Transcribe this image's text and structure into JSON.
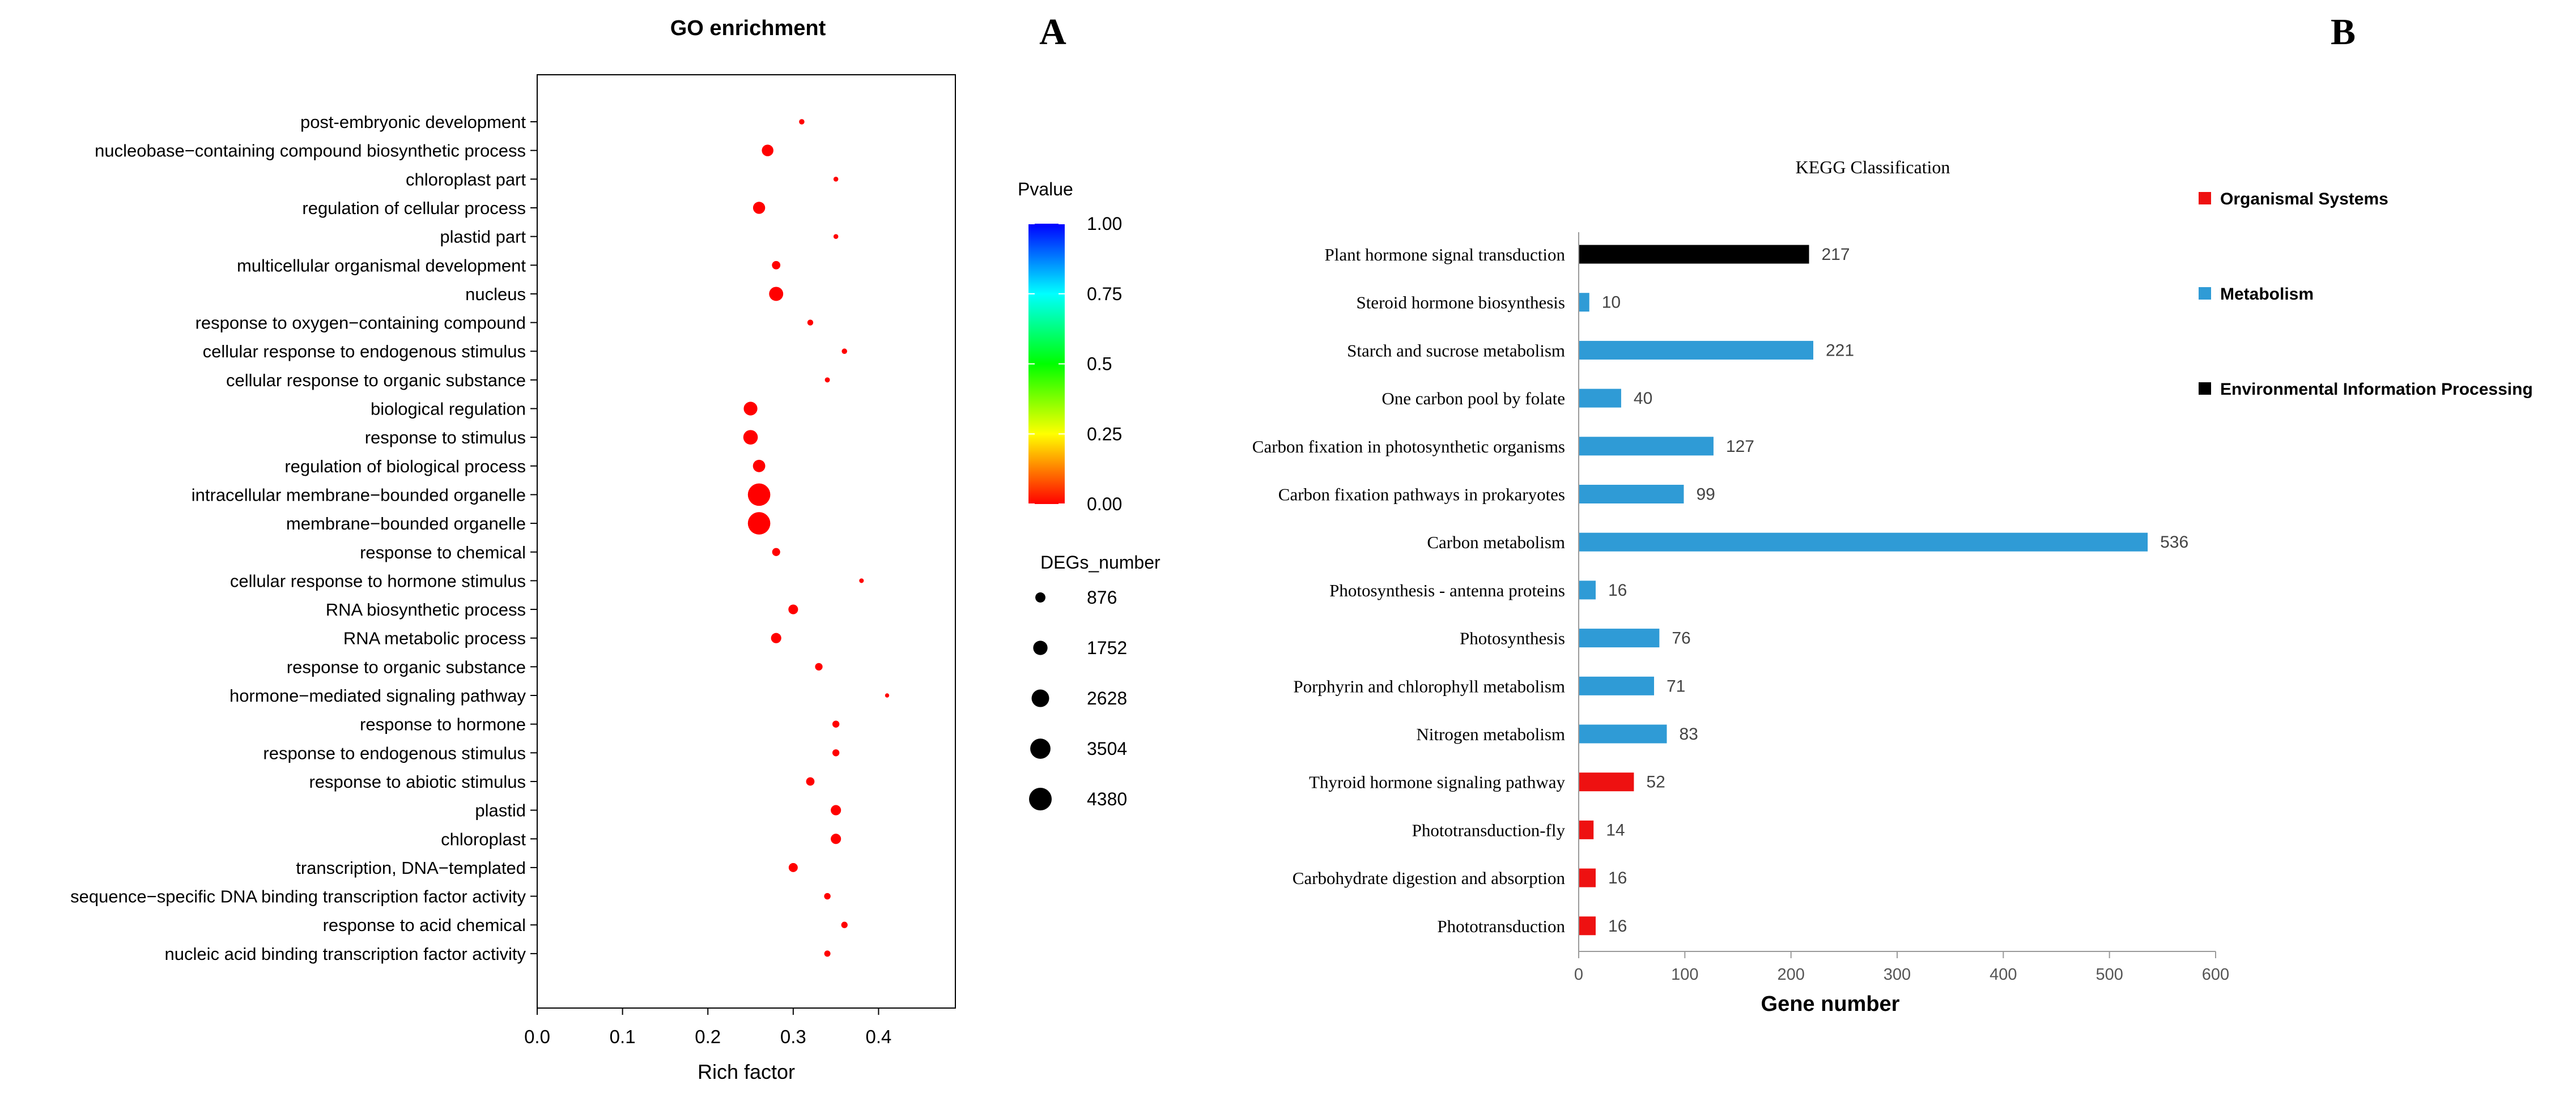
{
  "panel_labels": {
    "a": "A",
    "b": "B"
  },
  "chart_data": [
    {
      "type": "scatter",
      "title": "GO enrichment",
      "xlabel": "Rich factor",
      "ylabel": "",
      "xlim": [
        0.0,
        0.49
      ],
      "xticks": [
        "0.0",
        "0.1",
        "0.2",
        "0.3",
        "0.4"
      ],
      "xtick_values": [
        0.0,
        0.1,
        0.2,
        0.3,
        0.4
      ],
      "terms": [
        "post-embryonic development",
        "nucleobase−containing compound biosynthetic process",
        "chloroplast part",
        "regulation of cellular process",
        "plastid part",
        "multicellular organismal development",
        "nucleus",
        "response to oxygen−containing compound",
        "cellular response to endogenous stimulus",
        "cellular response to organic substance",
        "biological regulation",
        "response to stimulus",
        "regulation of biological process",
        "intracellular membrane−bounded organelle",
        "membrane−bounded organelle",
        "response to chemical",
        "cellular response to hormone stimulus",
        "RNA biosynthetic process",
        "RNA metabolic process",
        "response to organic substance",
        "hormone−mediated signaling pathway",
        "response to hormone",
        "response to endogenous stimulus",
        "response to abiotic stimulus",
        "plastid",
        "chloroplast",
        "transcription, DNA−templated",
        "sequence−specific DNA binding transcription factor activity",
        "response to acid chemical",
        "nucleic acid binding transcription factor activity"
      ],
      "rich_factor": [
        0.31,
        0.27,
        0.35,
        0.26,
        0.35,
        0.28,
        0.28,
        0.32,
        0.36,
        0.34,
        0.25,
        0.25,
        0.26,
        0.26,
        0.26,
        0.28,
        0.38,
        0.3,
        0.28,
        0.33,
        0.41,
        0.35,
        0.35,
        0.32,
        0.35,
        0.35,
        0.3,
        0.34,
        0.36,
        0.34
      ],
      "degs_number": [
        250,
        1150,
        200,
        1250,
        200,
        600,
        1700,
        300,
        250,
        220,
        1600,
        1800,
        1300,
        4300,
        4300,
        550,
        180,
        800,
        900,
        480,
        150,
        420,
        420,
        600,
        900,
        900,
        700,
        360,
        350,
        330
      ],
      "pvalue": [
        0,
        0,
        0,
        0,
        0,
        0,
        0,
        0,
        0,
        0,
        0,
        0,
        0,
        0,
        0,
        0,
        0,
        0,
        0,
        0,
        0,
        0,
        0,
        0,
        0,
        0,
        0,
        0,
        0,
        0
      ],
      "color_legend": {
        "title": "Pvalue",
        "ticks": [
          "1.00",
          "0.75",
          "0.5",
          "0.25",
          "0.00"
        ],
        "tick_values": [
          1.0,
          0.75,
          0.5,
          0.25,
          0.0
        ]
      },
      "size_legend": {
        "title": "DEGs_number",
        "labels": [
          "876",
          "1752",
          "2628",
          "3504",
          "4380"
        ],
        "values": [
          876,
          1752,
          2628,
          3504,
          4380
        ]
      }
    },
    {
      "type": "bar",
      "orientation": "horizontal",
      "title": "KEGG  Classification",
      "xlabel": "Gene number",
      "xlim": [
        0,
        600
      ],
      "xticks": [
        "0",
        "100",
        "200",
        "300",
        "400",
        "500",
        "600"
      ],
      "xtick_values": [
        0,
        100,
        200,
        300,
        400,
        500,
        600
      ],
      "categories": [
        "Plant hormone signal transduction",
        "Steroid hormone biosynthesis",
        "Starch and sucrose metabolism",
        "One carbon pool by folate",
        "Carbon fixation in photosynthetic organisms",
        "Carbon fixation pathways in prokaryotes",
        "Carbon metabolism",
        "Photosynthesis - antenna proteins",
        "Photosynthesis",
        "Porphyrin and chlorophyll metabolism",
        "Nitrogen metabolism",
        "Thyroid hormone signaling pathway",
        "Phototransduction-fly",
        "Carbohydrate digestion and absorption",
        "Phototransduction"
      ],
      "values": [
        217,
        10,
        221,
        40,
        127,
        99,
        536,
        16,
        76,
        71,
        83,
        52,
        14,
        16,
        16
      ],
      "value_labels": [
        "217",
        "10",
        "221",
        "40",
        "127",
        "99",
        "536",
        "16",
        "76",
        "71",
        "83",
        "52",
        "14",
        "16",
        "16"
      ],
      "groups": [
        "env",
        "met",
        "met",
        "met",
        "met",
        "met",
        "met",
        "met",
        "met",
        "met",
        "met",
        "org",
        "org",
        "org",
        "org"
      ],
      "legend": [
        {
          "key": "org",
          "label": "Organismal Systems",
          "color": "#ee1111"
        },
        {
          "key": "met",
          "label": "Metabolism",
          "color": "#2f9bd6"
        },
        {
          "key": "env",
          "label": "Environmental Information Processing",
          "color": "#000000"
        }
      ]
    }
  ]
}
